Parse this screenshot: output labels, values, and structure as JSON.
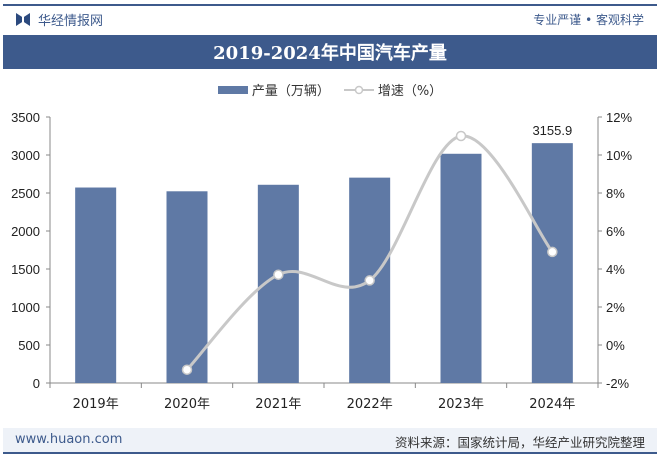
{
  "header": {
    "brand": "华经情报网",
    "slogan": "专业严谨 • 客观科学",
    "title": "2019-2024年中国汽车产量"
  },
  "legend": {
    "bar_label": "产量（万辆）",
    "line_label": "增速（%）"
  },
  "footer": {
    "url": "www.huaon.com",
    "source": "资料来源：国家统计局，华经产业研究院整理"
  },
  "colors": {
    "bar": "#5f79a5",
    "line": "#c8c8c8",
    "band": "#3d5a8c"
  },
  "chart_data": {
    "type": "bar+line",
    "title": "2019-2024年中国汽车产量",
    "categories": [
      "2019年",
      "2020年",
      "2021年",
      "2022年",
      "2023年",
      "2024年"
    ],
    "series": [
      {
        "name": "产量（万辆）",
        "type": "bar",
        "axis": "left",
        "values": [
          2572.1,
          2522.5,
          2608.2,
          2702.1,
          3016.1,
          3155.9
        ]
      },
      {
        "name": "增速（%）",
        "type": "line",
        "axis": "right",
        "values": [
          null,
          -1.3,
          3.7,
          3.4,
          11.0,
          4.9
        ]
      }
    ],
    "data_labels": [
      {
        "category": "2024年",
        "text": "3155.9"
      }
    ],
    "left_axis": {
      "range": [
        0,
        3500
      ],
      "ticks": [
        "0",
        "500",
        "1000",
        "1500",
        "2000",
        "2500",
        "3000",
        "3500"
      ]
    },
    "right_axis": {
      "range": [
        -2,
        12
      ],
      "ticks": [
        "-2%",
        "0%",
        "2%",
        "4%",
        "6%",
        "8%",
        "10%",
        "12%"
      ]
    },
    "grid": false,
    "legend_position": "top"
  }
}
